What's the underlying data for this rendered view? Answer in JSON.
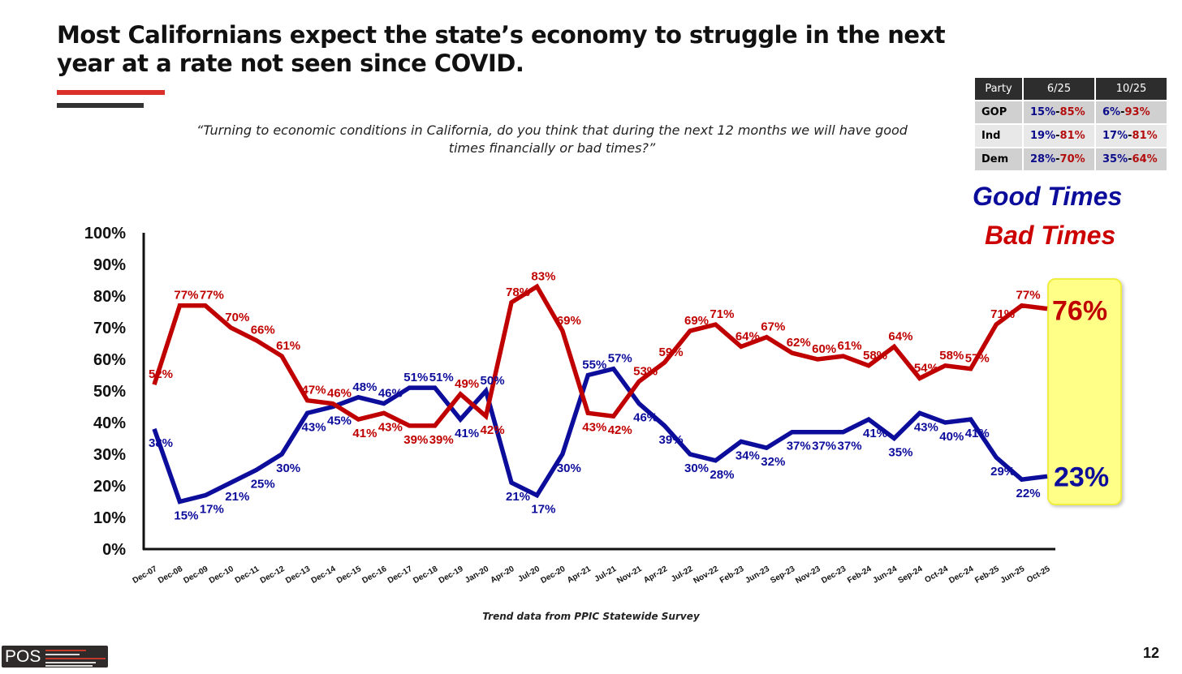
{
  "title": "Most Californians expect the state’s economy to struggle in the next year at a rate not seen since COVID.",
  "question": "“Turning to economic conditions in California, do you think that during the next 12 months we will have good times financially or bad times?”",
  "party_table": {
    "headers": [
      "Party",
      "6/25",
      "10/25"
    ],
    "rows": [
      {
        "party": "GOP",
        "jun_good": "15%",
        "jun_bad": "85%",
        "oct_good": "6%",
        "oct_bad": "93%"
      },
      {
        "party": "Ind",
        "jun_good": "19%",
        "jun_bad": "81%",
        "oct_good": "17%",
        "oct_bad": "81%"
      },
      {
        "party": "Dem",
        "jun_good": "28%",
        "jun_bad": "70%",
        "oct_good": "35%",
        "oct_bad": "64%"
      }
    ]
  },
  "source": "Trend data from PPIC Statewide Survey",
  "page_number": "12",
  "logo_text": "POS",
  "colors": {
    "good": "#0d0d9c",
    "bad": "#c00000",
    "highlight": "#ffff88"
  },
  "chart_data": {
    "type": "line",
    "title": "",
    "xlabel": "",
    "ylabel": "",
    "ylim": [
      0,
      100
    ],
    "yticks": [
      "0%",
      "10%",
      "20%",
      "30%",
      "40%",
      "50%",
      "60%",
      "70%",
      "80%",
      "90%",
      "100%"
    ],
    "legend": {
      "placement": "top-right",
      "entries": [
        "Good Times",
        "Bad Times"
      ]
    },
    "categories": [
      "Dec-07",
      "Dec-08",
      "Dec-09",
      "Dec-10",
      "Dec-11",
      "Dec-12",
      "Dec-13",
      "Dec-14",
      "Dec-15",
      "Dec-16",
      "Dec-17",
      "Dec-18",
      "Dec-19",
      "Jan-20",
      "Apr-20",
      "Jul-20",
      "Dec-20",
      "Apr-21",
      "Jul-21",
      "Nov-21",
      "Apr-22",
      "Jul-22",
      "Nov-22",
      "Feb-23",
      "Jun-23",
      "Sep-23",
      "Nov-23",
      "Dec-23",
      "Feb-24",
      "Jun-24",
      "Sep-24",
      "Oct-24",
      "Dec-24",
      "Feb-25",
      "Jun-25",
      "Oct-25"
    ],
    "series": [
      {
        "name": "Good Times",
        "color": "#0d0d9c",
        "values": [
          38,
          15,
          17,
          21,
          25,
          30,
          43,
          45,
          48,
          46,
          51,
          51,
          41,
          50,
          21,
          17,
          30,
          55,
          57,
          46,
          39,
          30,
          28,
          34,
          32,
          37,
          37,
          37,
          41,
          35,
          43,
          40,
          41,
          29,
          22,
          23
        ]
      },
      {
        "name": "Bad Times",
        "color": "#c00000",
        "values": [
          52,
          77,
          77,
          70,
          66,
          61,
          47,
          46,
          41,
          43,
          39,
          39,
          49,
          42,
          78,
          83,
          69,
          43,
          42,
          53,
          59,
          69,
          71,
          64,
          67,
          62,
          60,
          61,
          58,
          64,
          54,
          58,
          57,
          71,
          77,
          76
        ]
      }
    ],
    "highlight_latest": {
      "good": "23%",
      "bad": "76%"
    }
  }
}
